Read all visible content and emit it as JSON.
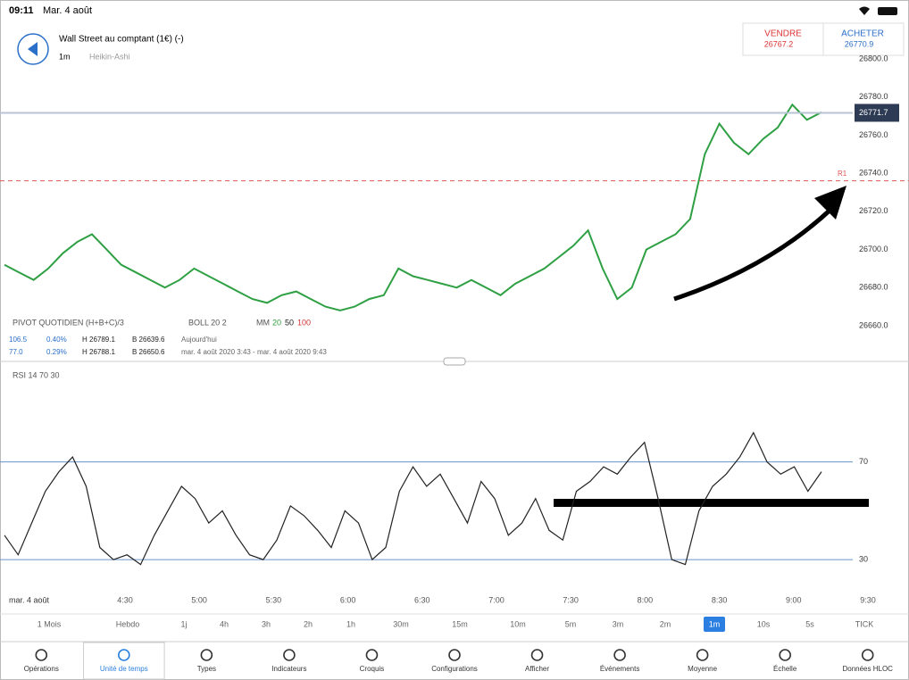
{
  "status": {
    "time": "09:11",
    "date": "Mar. 4 août"
  },
  "header": {
    "title": "Wall Street au comptant (1€) (-)",
    "interval": "1m",
    "chart_style": "Heikin-Ashi"
  },
  "sell": {
    "label": "VENDRE",
    "price": 26767.2
  },
  "buy": {
    "label": "ACHETER",
    "price": 26770.9
  },
  "legend": {
    "pivot": "PIVOT QUOTIDIEN (H+B+C)/3",
    "boll": "BOLL 20 2",
    "mm": "MM",
    "mm_periods": [
      "20",
      "50",
      "100"
    ],
    "mm_colors": [
      "#2e9e3e",
      "#222222",
      "#d33333"
    ]
  },
  "info_rows": [
    [
      "106.5",
      "0.40%",
      "H 26789.1",
      "B 26639.6",
      "Aujourd'hui"
    ],
    [
      "77.0",
      "0.29%",
      "H 26788.1",
      "B 26650.6",
      "mar. 4 août 2020 3:43 - mar. 4 août 2020 9:43"
    ]
  ],
  "chart_data": [
    {
      "type": "line",
      "name": "price",
      "color": "#2ea043",
      "values": [
        26692,
        26688,
        26684,
        26690,
        26698,
        26704,
        26708,
        26700,
        26692,
        26688,
        26684,
        26680,
        26684,
        26690,
        26686,
        26682,
        26678,
        26674,
        26672,
        26676,
        26678,
        26674,
        26670,
        26668,
        26670,
        26674,
        26676,
        26690,
        26686,
        26684,
        26682,
        26680,
        26684,
        26680,
        26676,
        26682,
        26686,
        26690,
        26696,
        26702,
        26710,
        26690,
        26674,
        26680,
        26700,
        26704,
        26708,
        26716,
        26750,
        26766,
        26756,
        26750,
        26758,
        26764,
        26776,
        26768,
        26772
      ],
      "ylim": [
        26660,
        26800
      ],
      "yticks": [
        {
          "value": 26800,
          "label": "26800.0"
        },
        {
          "value": 26780,
          "label": "26780.0"
        },
        {
          "value": 26760,
          "label": "26760.0"
        },
        {
          "value": 26740,
          "label": "26740.0"
        },
        {
          "value": 26720,
          "label": "26720.0"
        },
        {
          "value": 26700,
          "label": "26700.0"
        },
        {
          "value": 26680,
          "label": "26680.0"
        },
        {
          "value": 26660,
          "label": "26660.0"
        }
      ],
      "current": 26771.7,
      "r1": {
        "label": "R1",
        "value": 26736
      }
    },
    {
      "type": "line",
      "name": "RSI 14 70 30",
      "color": "#222222",
      "values": [
        40,
        32,
        45,
        58,
        66,
        72,
        60,
        35,
        30,
        32,
        28,
        40,
        50,
        60,
        55,
        45,
        50,
        40,
        32,
        30,
        38,
        52,
        48,
        42,
        35,
        50,
        45,
        30,
        35,
        58,
        68,
        60,
        65,
        55,
        45,
        62,
        55,
        40,
        45,
        55,
        42,
        38,
        58,
        62,
        68,
        65,
        72,
        78,
        55,
        30,
        28,
        50,
        60,
        65,
        72,
        82,
        70,
        65,
        68,
        58,
        66
      ],
      "ylim": [
        18,
        102
      ],
      "yticks": [
        70,
        30
      ]
    }
  ],
  "x_axis": {
    "date": "mar. 4 août",
    "ticks": [
      "4:30",
      "5:00",
      "5:30",
      "6:00",
      "6:30",
      "7:00",
      "7:30",
      "8:00",
      "8:30",
      "9:00",
      "9:30"
    ]
  },
  "timeframes": [
    "1 Mois",
    "Hebdo",
    "1j",
    "4h",
    "3h",
    "2h",
    "1h",
    "30m",
    "15m",
    "10m",
    "5m",
    "3m",
    "2m",
    "1m",
    "10s",
    "5s",
    "TICK"
  ],
  "timeframe_selected": 13,
  "tabs": [
    "Opérations",
    "Unité de temps",
    "Types",
    "Indicateurs",
    "Croquis",
    "Configurations",
    "Afficher",
    "Événements",
    "Moyenne",
    "Échelle",
    "Données HLOC"
  ],
  "tab_selected": 1
}
